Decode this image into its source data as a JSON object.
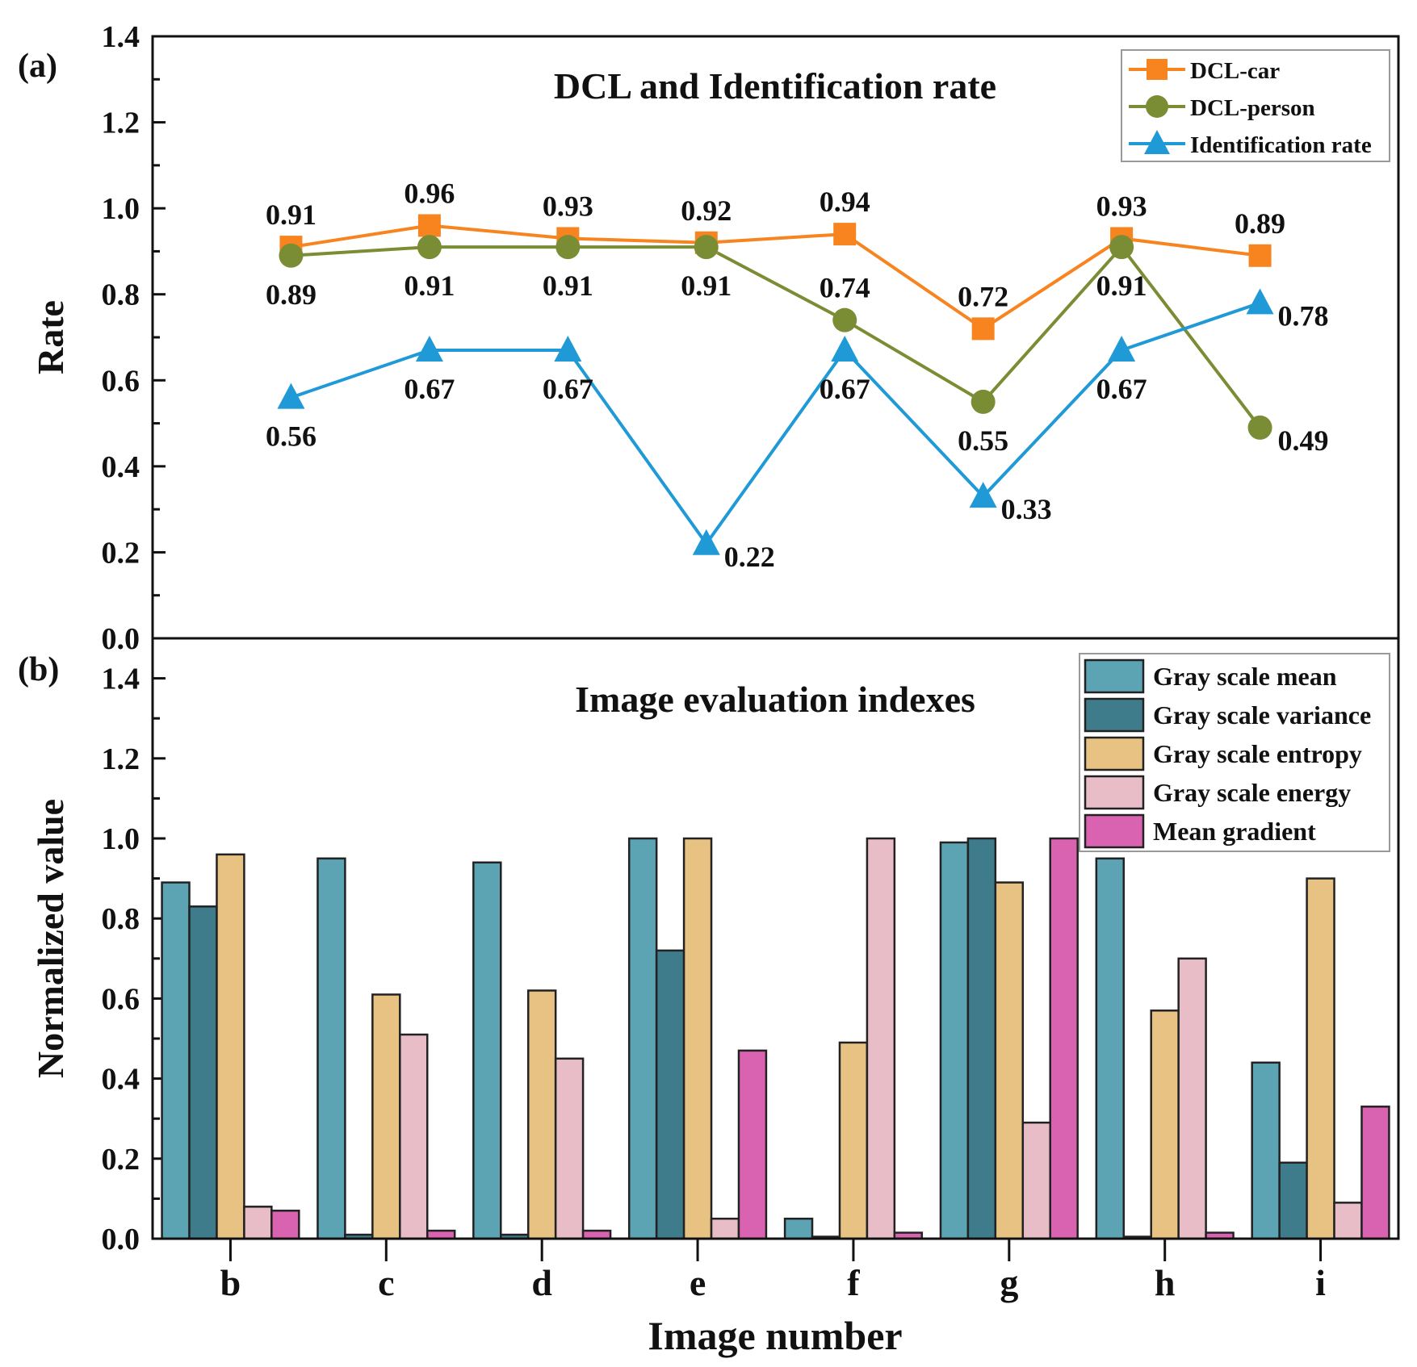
{
  "chart_data": [
    {
      "panel": "(a)",
      "type": "line",
      "title": "DCL and Identification rate",
      "xlabel": "",
      "ylabel": "Rate",
      "ylim": [
        0,
        1.4
      ],
      "yticks": [
        "0.0",
        "0.2",
        "0.4",
        "0.6",
        "0.8",
        "1.0",
        "1.2",
        "1.4"
      ],
      "xlim": [
        -1,
        8
      ],
      "categories": [
        "b",
        "c",
        "d",
        "e",
        "f",
        "g",
        "h",
        "i"
      ],
      "legend_position": "top-right",
      "series": [
        {
          "name": "DCL-car",
          "marker": "square",
          "color": "#f7841f",
          "values": [
            0.91,
            0.96,
            0.93,
            0.92,
            0.94,
            0.72,
            0.93,
            0.89
          ],
          "labels": [
            "0.91",
            "0.96",
            "0.93",
            "0.92",
            "0.94",
            "0.72",
            "0.93",
            "0.89"
          ],
          "label_side": [
            "above",
            "above",
            "above",
            "above",
            "above",
            "above",
            "above",
            "above"
          ]
        },
        {
          "name": "DCL-person",
          "marker": "circle",
          "color": "#7b8d34",
          "values": [
            0.89,
            0.91,
            0.91,
            0.91,
            0.74,
            0.55,
            0.91,
            0.49
          ],
          "labels": [
            "0.89",
            "0.91",
            "0.91",
            "0.91",
            "0.74",
            "0.55",
            "0.91",
            "0.49"
          ],
          "label_side": [
            "below",
            "below",
            "below",
            "below",
            "above",
            "below",
            "below",
            "right"
          ]
        },
        {
          "name": "Identification rate",
          "marker": "triangle",
          "color": "#1f9ad6",
          "values": [
            0.56,
            0.67,
            0.67,
            0.22,
            0.67,
            0.33,
            0.67,
            0.78
          ],
          "labels": [
            "0.56",
            "0.67",
            "0.67",
            "0.22",
            "0.67",
            "0.33",
            "0.67",
            "0.78"
          ],
          "label_side": [
            "below",
            "below",
            "below",
            "right",
            "below",
            "right",
            "below",
            "right"
          ]
        }
      ]
    },
    {
      "panel": "(b)",
      "type": "bar",
      "title": "Image evaluation indexes",
      "xlabel": "Image number",
      "ylabel": "Normalized value",
      "ylim": [
        0,
        1.5
      ],
      "yticks": [
        "0.0",
        "0.2",
        "0.4",
        "0.6",
        "0.8",
        "1.0",
        "1.2",
        "1.4"
      ],
      "xlim": [
        -0.5,
        7.5
      ],
      "categories": [
        "b",
        "c",
        "d",
        "e",
        "f",
        "g",
        "h",
        "i"
      ],
      "legend_position": "top-right",
      "series": [
        {
          "name": "Gray scale mean",
          "color": "#5ca3b3",
          "values": [
            0.89,
            0.95,
            0.94,
            1.0,
            0.05,
            0.99,
            0.95,
            0.44
          ]
        },
        {
          "name": "Gray scale variance",
          "color": "#3e7c8c",
          "values": [
            0.83,
            0.01,
            0.01,
            0.72,
            0.005,
            1.0,
            0.005,
            0.19
          ]
        },
        {
          "name": "Gray scale entropy",
          "color": "#e8c283",
          "values": [
            0.96,
            0.61,
            0.62,
            1.0,
            0.49,
            0.89,
            0.57,
            0.9
          ]
        },
        {
          "name": "Gray scale energy",
          "color": "#e8bdc7",
          "values": [
            0.08,
            0.51,
            0.45,
            0.05,
            1.0,
            0.29,
            0.7,
            0.09
          ]
        },
        {
          "name": "Mean gradient",
          "color": "#d963b0",
          "values": [
            0.07,
            0.02,
            0.02,
            0.47,
            0.015,
            1.0,
            0.015,
            0.33
          ]
        }
      ]
    }
  ]
}
